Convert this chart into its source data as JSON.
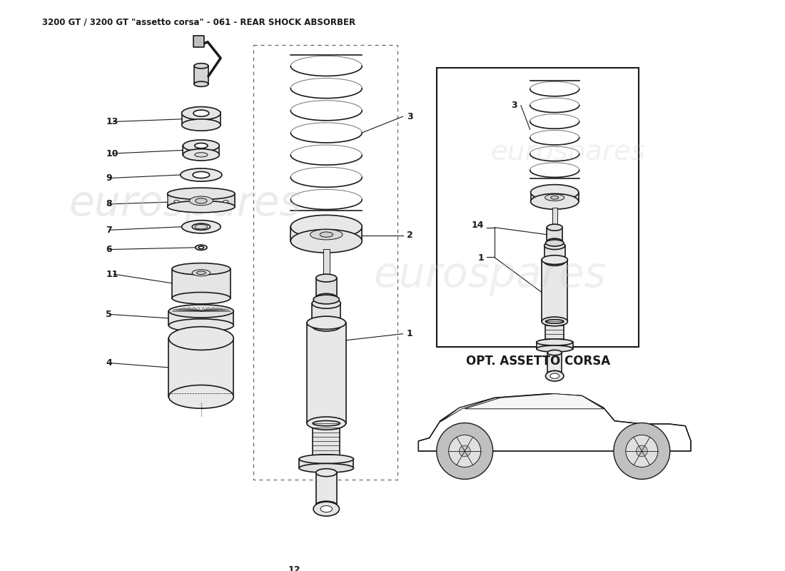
{
  "title": "3200 GT / 3200 GT \"assetto corsa\" - 061 - REAR SHOCK ABSORBER",
  "title_fontsize": 8.5,
  "bg_color": "#ffffff",
  "watermark_text": "eurospares",
  "opt_label": "OPT. ASSETTO CORSA",
  "fig_w": 11.0,
  "fig_h": 8.0
}
